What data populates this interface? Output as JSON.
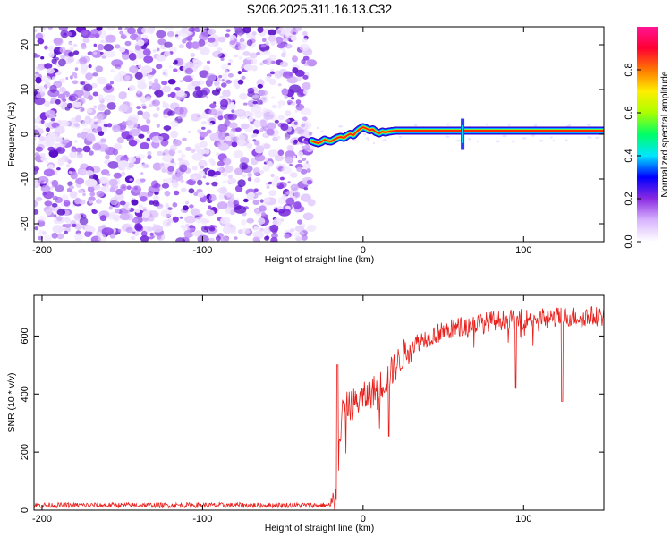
{
  "title": "S206.2025.311.16.13.C32",
  "chart_data": [
    {
      "type": "heatmap",
      "xlabel": "Height of straight line (km)",
      "ylabel": "Frequency (Hz)",
      "xlim": [
        -205,
        150
      ],
      "ylim": [
        -24,
        24
      ],
      "xticks": [
        -200,
        -100,
        0,
        100
      ],
      "yticks": [
        -20,
        -10,
        0,
        10,
        20
      ],
      "noise_region_x": [
        -205,
        -32
      ],
      "signal_trace": {
        "x": [
          -32,
          -30,
          -28,
          -26,
          -24,
          -22,
          -20,
          -18,
          -16,
          -14,
          -12,
          -10,
          -8,
          -6,
          -4,
          -2,
          0,
          2,
          4,
          6,
          8,
          10,
          12,
          14,
          16,
          18,
          20,
          150
        ],
        "freq": [
          -1.5,
          -1.8,
          -2.0,
          -1.7,
          -1.2,
          -1.5,
          -1.6,
          -1.2,
          -0.8,
          -0.6,
          -0.8,
          -0.3,
          0.1,
          -0.2,
          0.6,
          1.2,
          1.6,
          1.3,
          0.9,
          1.1,
          0.5,
          0.2,
          0.6,
          0.4,
          0.6,
          0.7,
          0.8,
          0.8
        ]
      },
      "spike_x": 62,
      "colorbar": {
        "label": "Normalized spectral amplitude",
        "range": [
          0,
          1
        ],
        "ticks": [
          0.0,
          0.2,
          0.4,
          0.6,
          0.8
        ],
        "tick_labels": [
          "0.0",
          "0.2",
          "0.4",
          "0.6",
          "0.8"
        ],
        "colors": [
          "#ffffff",
          "#d8b4fe",
          "#8a2be2",
          "#0000ff",
          "#00e5ff",
          "#00ff66",
          "#aaff00",
          "#ffee00",
          "#ff7700",
          "#ff0033",
          "#ff1493"
        ]
      }
    },
    {
      "type": "line",
      "xlabel": "Height of straight line (km)",
      "ylabel": "SNR (10 * v/v)",
      "xlim": [
        -205,
        150
      ],
      "ylim": [
        0,
        740
      ],
      "xticks": [
        -200,
        -100,
        0,
        100
      ],
      "yticks": [
        0,
        200,
        400,
        600
      ],
      "color": "#e8201c",
      "envelope": {
        "x": [
          -205,
          -20,
          -19,
          -18,
          -17,
          -16,
          -15,
          -14,
          -13,
          -12,
          -10,
          -5,
          0,
          5,
          10,
          15,
          20,
          25,
          30,
          40,
          50,
          60,
          70,
          80,
          90,
          100,
          110,
          120,
          130,
          140,
          150
        ],
        "y": [
          18,
          18,
          25,
          40,
          70,
          120,
          200,
          280,
          330,
          350,
          360,
          375,
          390,
          410,
          430,
          460,
          500,
          540,
          570,
          600,
          620,
          635,
          645,
          655,
          660,
          662,
          665,
          668,
          670,
          672,
          672
        ]
      },
      "dips": [
        {
          "x": 95,
          "y": 420
        },
        {
          "x": 124,
          "y": 375
        },
        {
          "x": 16,
          "y": 255
        }
      ]
    }
  ]
}
